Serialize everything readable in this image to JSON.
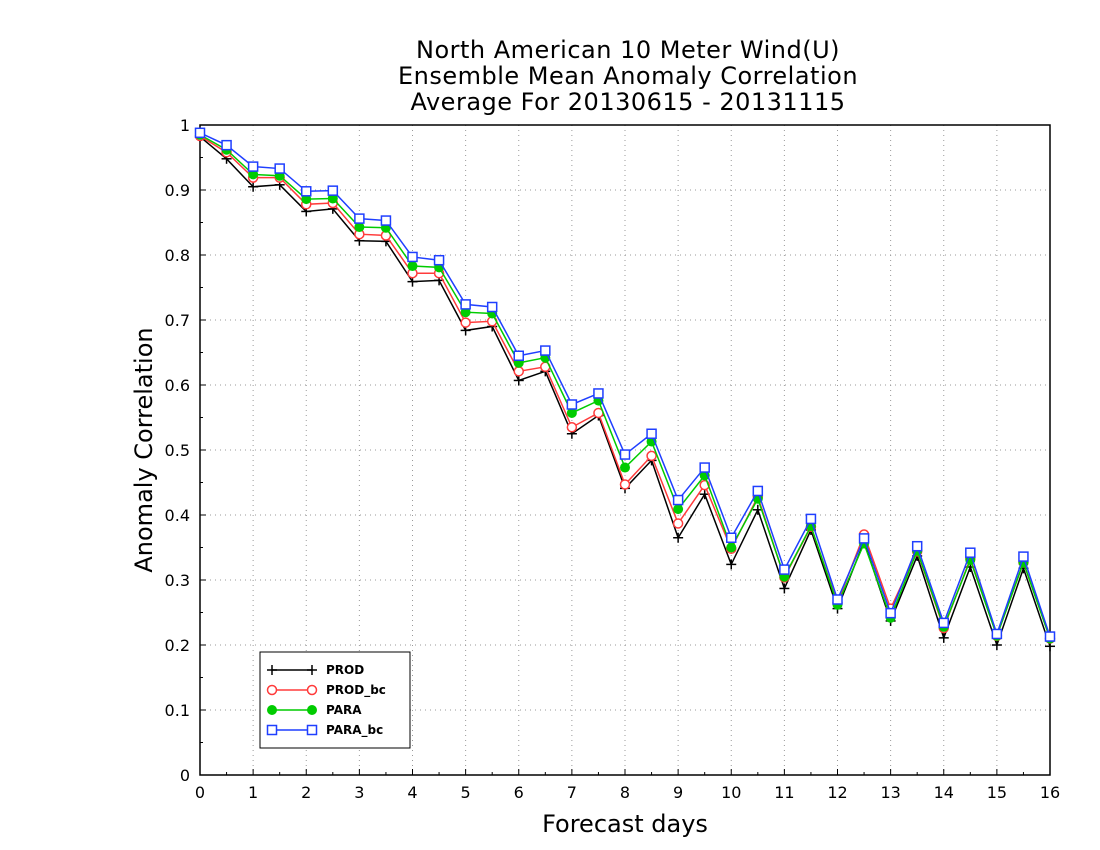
{
  "chart_data": {
    "type": "line",
    "title_lines": [
      "North American 10 Meter Wind(U)",
      "Ensemble Mean Anomaly Correlation",
      "Average For 20130615 - 20131115"
    ],
    "xlabel": "Forecast days",
    "ylabel": "Anomaly Correlation",
    "xlim": [
      0,
      16
    ],
    "ylim": [
      0,
      1
    ],
    "x_ticks": [
      "0",
      "1",
      "2",
      "3",
      "4",
      "5",
      "6",
      "7",
      "8",
      "9",
      "10",
      "11",
      "12",
      "13",
      "14",
      "15",
      "16"
    ],
    "y_ticks": [
      "0",
      "0.1",
      "0.2",
      "0.3",
      "0.4",
      "0.5",
      "0.6",
      "0.7",
      "0.8",
      "0.9",
      "1"
    ],
    "grid": true,
    "legend_position": "bottom-left",
    "x": [
      0,
      0.5,
      1,
      1.5,
      2,
      2.5,
      3,
      3.5,
      4,
      4.5,
      5,
      5.5,
      6,
      6.5,
      7,
      7.5,
      8,
      8.5,
      9,
      9.5,
      10,
      10.5,
      11,
      11.5,
      12,
      12.5,
      13,
      13.5,
      14,
      14.5,
      15,
      15.5,
      16
    ],
    "series": [
      {
        "name": "PROD",
        "color": "#000000",
        "marker": "plus",
        "values": [
          0.982,
          0.948,
          0.905,
          0.908,
          0.867,
          0.871,
          0.822,
          0.821,
          0.759,
          0.761,
          0.684,
          0.69,
          0.607,
          0.621,
          0.525,
          0.553,
          0.441,
          0.484,
          0.365,
          0.432,
          0.324,
          0.408,
          0.287,
          0.377,
          0.256,
          0.359,
          0.237,
          0.337,
          0.211,
          0.32,
          0.2,
          0.318,
          0.198
        ]
      },
      {
        "name": "PROD_bc",
        "color": "#ff3b3b",
        "marker": "circle-open",
        "values": [
          0.983,
          0.958,
          0.919,
          0.919,
          0.878,
          0.88,
          0.832,
          0.83,
          0.772,
          0.772,
          0.696,
          0.698,
          0.621,
          0.628,
          0.535,
          0.557,
          0.447,
          0.491,
          0.387,
          0.446,
          0.348,
          0.428,
          0.304,
          0.382,
          0.265,
          0.37,
          0.256,
          0.344,
          0.226,
          0.333,
          0.214,
          0.327,
          0.21
        ]
      },
      {
        "name": "PARA",
        "color": "#00cc00",
        "marker": "circle-filled",
        "values": [
          0.985,
          0.962,
          0.924,
          0.922,
          0.886,
          0.887,
          0.843,
          0.842,
          0.783,
          0.781,
          0.712,
          0.71,
          0.634,
          0.642,
          0.557,
          0.576,
          0.473,
          0.513,
          0.409,
          0.461,
          0.35,
          0.425,
          0.305,
          0.383,
          0.262,
          0.356,
          0.242,
          0.345,
          0.228,
          0.331,
          0.214,
          0.327,
          0.21
        ]
      },
      {
        "name": "PARA_bc",
        "color": "#1f3fff",
        "marker": "square-open",
        "values": [
          0.988,
          0.969,
          0.936,
          0.933,
          0.898,
          0.899,
          0.856,
          0.853,
          0.797,
          0.792,
          0.724,
          0.72,
          0.645,
          0.653,
          0.57,
          0.587,
          0.493,
          0.525,
          0.423,
          0.473,
          0.365,
          0.437,
          0.316,
          0.394,
          0.27,
          0.364,
          0.249,
          0.352,
          0.234,
          0.342,
          0.217,
          0.336,
          0.213
        ]
      }
    ]
  }
}
